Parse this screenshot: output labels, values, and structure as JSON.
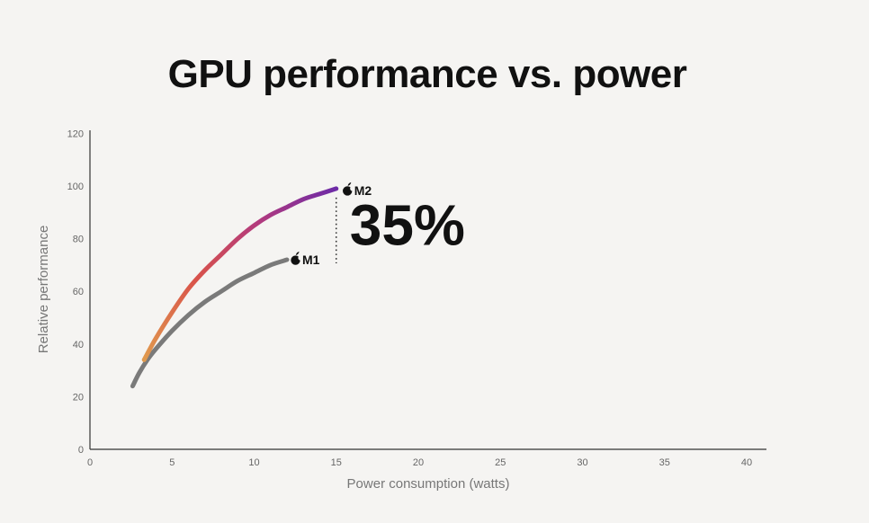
{
  "chart_data": {
    "type": "line",
    "title": "GPU performance vs. power",
    "xlabel": "Power consumption (watts)",
    "ylabel": "Relative performance",
    "xlim": [
      0,
      41
    ],
    "ylim": [
      0,
      120
    ],
    "x_ticks": [
      0,
      5,
      10,
      15,
      20,
      25,
      30,
      35,
      40
    ],
    "y_ticks": [
      0,
      20,
      40,
      60,
      80,
      100,
      120
    ],
    "grid": false,
    "series": [
      {
        "name": "M1",
        "color": "#7a7a7a",
        "x": [
          2.6,
          3.0,
          3.5,
          4.0,
          5.0,
          6.0,
          7.0,
          8.0,
          9.0,
          10.0,
          11.0,
          12.0
        ],
        "y": [
          24,
          29,
          34,
          38,
          45,
          51,
          56,
          60,
          64,
          67,
          70,
          72
        ]
      },
      {
        "name": "M2",
        "gradient": [
          "#e09a4e",
          "#d9534a",
          "#b23a7e",
          "#6a2aa8"
        ],
        "x": [
          3.3,
          4.0,
          5.0,
          6.0,
          7.0,
          8.0,
          9.0,
          10.0,
          11.0,
          12.0,
          13.0,
          14.0,
          15.0
        ],
        "y": [
          34,
          42,
          52,
          61,
          68,
          74,
          80,
          85,
          89,
          92,
          95,
          97,
          99
        ]
      }
    ],
    "annotation": {
      "text": "35%",
      "x": 15,
      "y_from": 72,
      "y_to": 99
    }
  }
}
